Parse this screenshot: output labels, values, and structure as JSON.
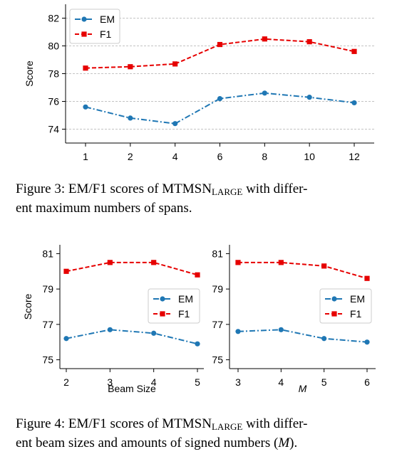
{
  "chart_data": [
    {
      "id": "fig3",
      "type": "line",
      "categories": [
        "1",
        "2",
        "4",
        "6",
        "8",
        "10",
        "12"
      ],
      "series": [
        {
          "name": "EM",
          "color": "#1f77b4",
          "marker": "circle",
          "line": "dashdot",
          "values": [
            75.6,
            74.8,
            74.4,
            76.2,
            76.6,
            76.3,
            75.9
          ]
        },
        {
          "name": "F1",
          "color": "#e60000",
          "marker": "square",
          "line": "dashed",
          "values": [
            78.4,
            78.5,
            78.7,
            80.1,
            80.5,
            80.3,
            79.6
          ]
        }
      ],
      "ylabel": "Score",
      "xlabel": "",
      "ylim": [
        73,
        83
      ],
      "yticks": [
        "74",
        "76",
        "78",
        "80",
        "82"
      ],
      "grid": "horizontal",
      "legend": "top-left"
    },
    {
      "id": "fig4a",
      "type": "line",
      "categories": [
        "2",
        "3",
        "4",
        "5"
      ],
      "series": [
        {
          "name": "EM",
          "color": "#1f77b4",
          "marker": "circle",
          "line": "dashdot",
          "values": [
            76.2,
            76.7,
            76.5,
            75.9
          ]
        },
        {
          "name": "F1",
          "color": "#e60000",
          "marker": "square",
          "line": "dashed",
          "values": [
            80.0,
            80.5,
            80.5,
            79.8
          ]
        }
      ],
      "ylabel": "Score",
      "xlabel": "Beam Size",
      "ylim": [
        74.5,
        81.5
      ],
      "yticks": [
        "75",
        "77",
        "79",
        "81"
      ],
      "grid": "none",
      "legend": "center-right"
    },
    {
      "id": "fig4b",
      "type": "line",
      "categories": [
        "3",
        "4",
        "5",
        "6"
      ],
      "series": [
        {
          "name": "EM",
          "color": "#1f77b4",
          "marker": "circle",
          "line": "dashdot",
          "values": [
            76.6,
            76.7,
            76.2,
            76.0
          ]
        },
        {
          "name": "F1",
          "color": "#e60000",
          "marker": "square",
          "line": "dashed",
          "values": [
            80.5,
            80.5,
            80.3,
            79.6
          ]
        }
      ],
      "ylabel": "",
      "xlabel": "M",
      "ylim": [
        74.5,
        81.5
      ],
      "yticks": [
        "75",
        "77",
        "79",
        "81"
      ],
      "grid": "none",
      "legend": "center-right"
    }
  ],
  "captions": {
    "fig3": {
      "prefix": "Figure 3: EM/F1 scores of MTMSN",
      "sub": "LARGE",
      "rest1": " with differ-",
      "line2": "ent maximum numbers of spans."
    },
    "fig4": {
      "prefix": "Figure 4: EM/F1 scores of MTMSN",
      "sub": "LARGE",
      "rest1": " with differ-",
      "line2a": "ent beam sizes and amounts of signed numbers (",
      "math": "M",
      "line2b": ")."
    }
  }
}
